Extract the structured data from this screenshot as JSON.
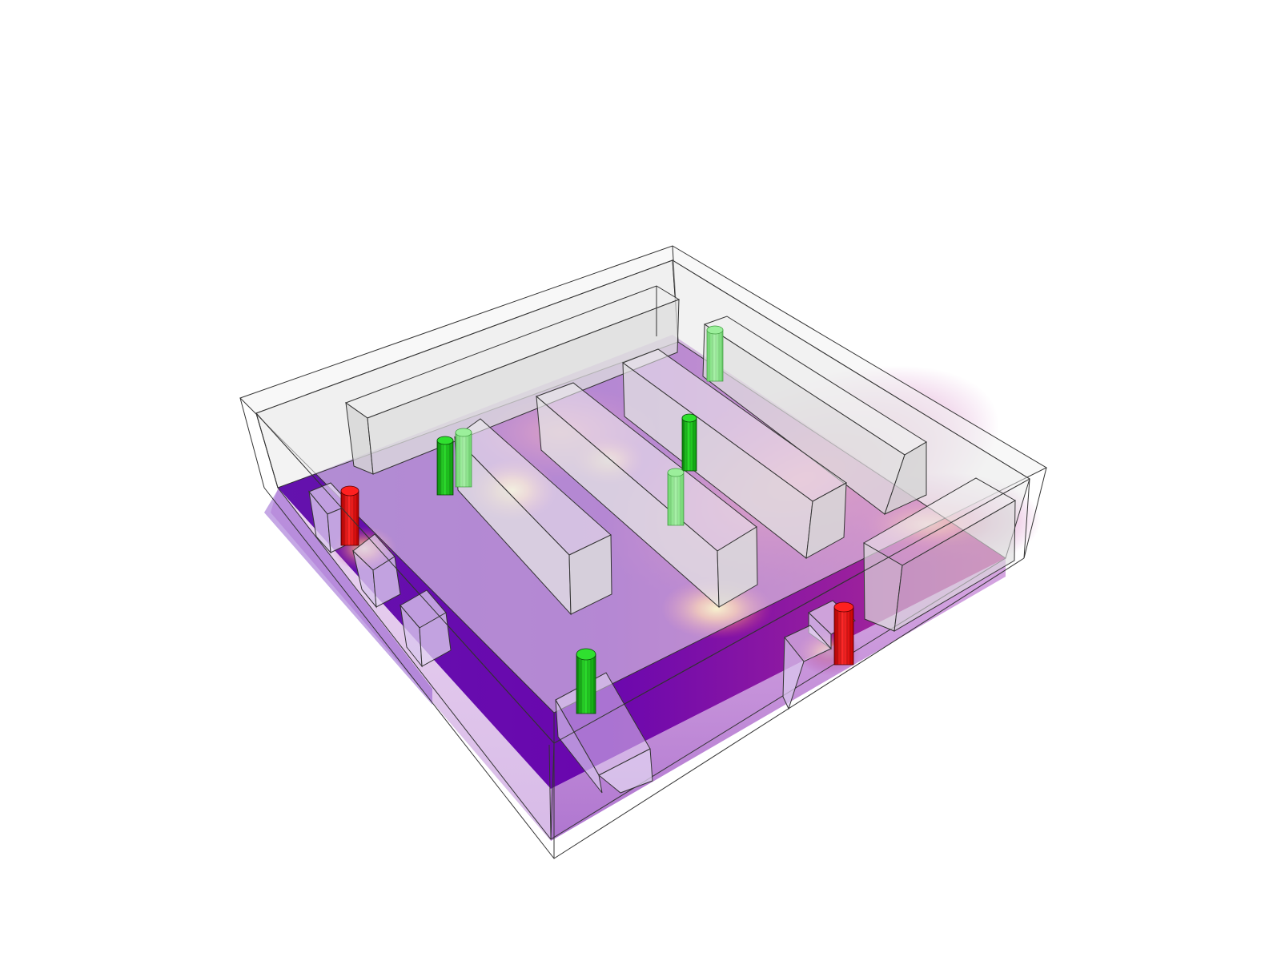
{
  "scene": {
    "background": "#ffffff",
    "floor_colormap": [
      "#4b00a8",
      "#8a0fb2",
      "#c2378f",
      "#f07f6a",
      "#fbe8a0"
    ],
    "supply_color": "#22dd22",
    "exhaust_color": "#ee1111",
    "obstacle_fill": "#e6e6e6",
    "edge_color": "#222222",
    "shelf_count": 4,
    "box_count": 6,
    "supply_diffuser_count": 6,
    "exhaust_vent_count": 2
  }
}
